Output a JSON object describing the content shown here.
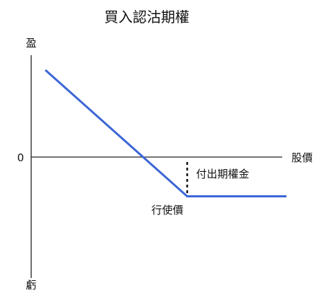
{
  "chart_data": {
    "type": "line",
    "title": "買入認沽期權",
    "y_axis_top_label": "盈",
    "y_axis_bottom_label": "虧",
    "x_axis_label": "股價",
    "zero_label": "0",
    "strike_label": "行使價",
    "premium_label": "付出期權金",
    "series": [
      {
        "values": [
          {
            "x": 0,
            "y": 60
          },
          {
            "x": 100,
            "y": -25
          },
          {
            "x": 170,
            "y": -25
          }
        ]
      }
    ],
    "strike_x": 100,
    "premium": 25,
    "xlim": [
      -10,
      170
    ],
    "ylim": [
      -80,
      70
    ],
    "line_color": "#3b66d6",
    "axis_color": "#222222"
  }
}
